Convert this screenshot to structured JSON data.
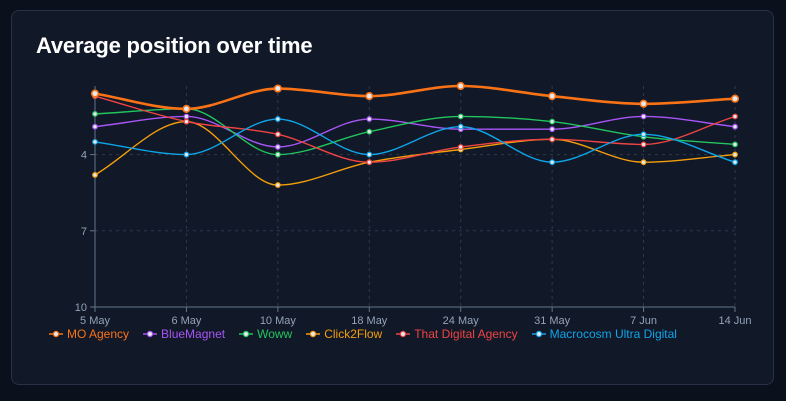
{
  "title": "Average position over time",
  "chart_data": {
    "type": "line",
    "title": "Average position over time",
    "xlabel": "",
    "ylabel": "",
    "categories": [
      "5 May",
      "6 May",
      "10 May",
      "18 May",
      "24 May",
      "31 May",
      "7 Jun",
      "14 Jun"
    ],
    "y_ticks": [
      4,
      7,
      10
    ],
    "ylim": [
      1.3,
      10
    ],
    "y_inverted": true,
    "grid": true,
    "legend": "bottom",
    "series": [
      {
        "name": "MO Agency",
        "color": "#f97316",
        "emphasis": true,
        "values": [
          1.6,
          2.2,
          1.4,
          1.7,
          1.3,
          1.7,
          2.0,
          1.8
        ]
      },
      {
        "name": "BlueMagnet",
        "color": "#a855f7",
        "values": [
          2.9,
          2.5,
          3.7,
          2.6,
          3.0,
          3.0,
          2.5,
          2.9
        ]
      },
      {
        "name": "Woww",
        "color": "#22c55e",
        "values": [
          2.4,
          2.2,
          4.0,
          3.1,
          2.5,
          2.7,
          3.3,
          3.6
        ]
      },
      {
        "name": "Click2Flow",
        "color": "#f59e0b",
        "values": [
          4.8,
          2.7,
          5.2,
          4.3,
          3.8,
          3.4,
          4.3,
          4.0
        ]
      },
      {
        "name": "That Digital Agency",
        "color": "#ef4444",
        "values": [
          1.7,
          2.7,
          3.2,
          4.3,
          3.7,
          3.4,
          3.6,
          2.5
        ]
      },
      {
        "name": "Macrocosm Ultra Digital",
        "color": "#0ea5e9",
        "values": [
          3.5,
          4.0,
          2.6,
          4.0,
          2.9,
          4.3,
          3.2,
          4.3
        ]
      }
    ]
  }
}
